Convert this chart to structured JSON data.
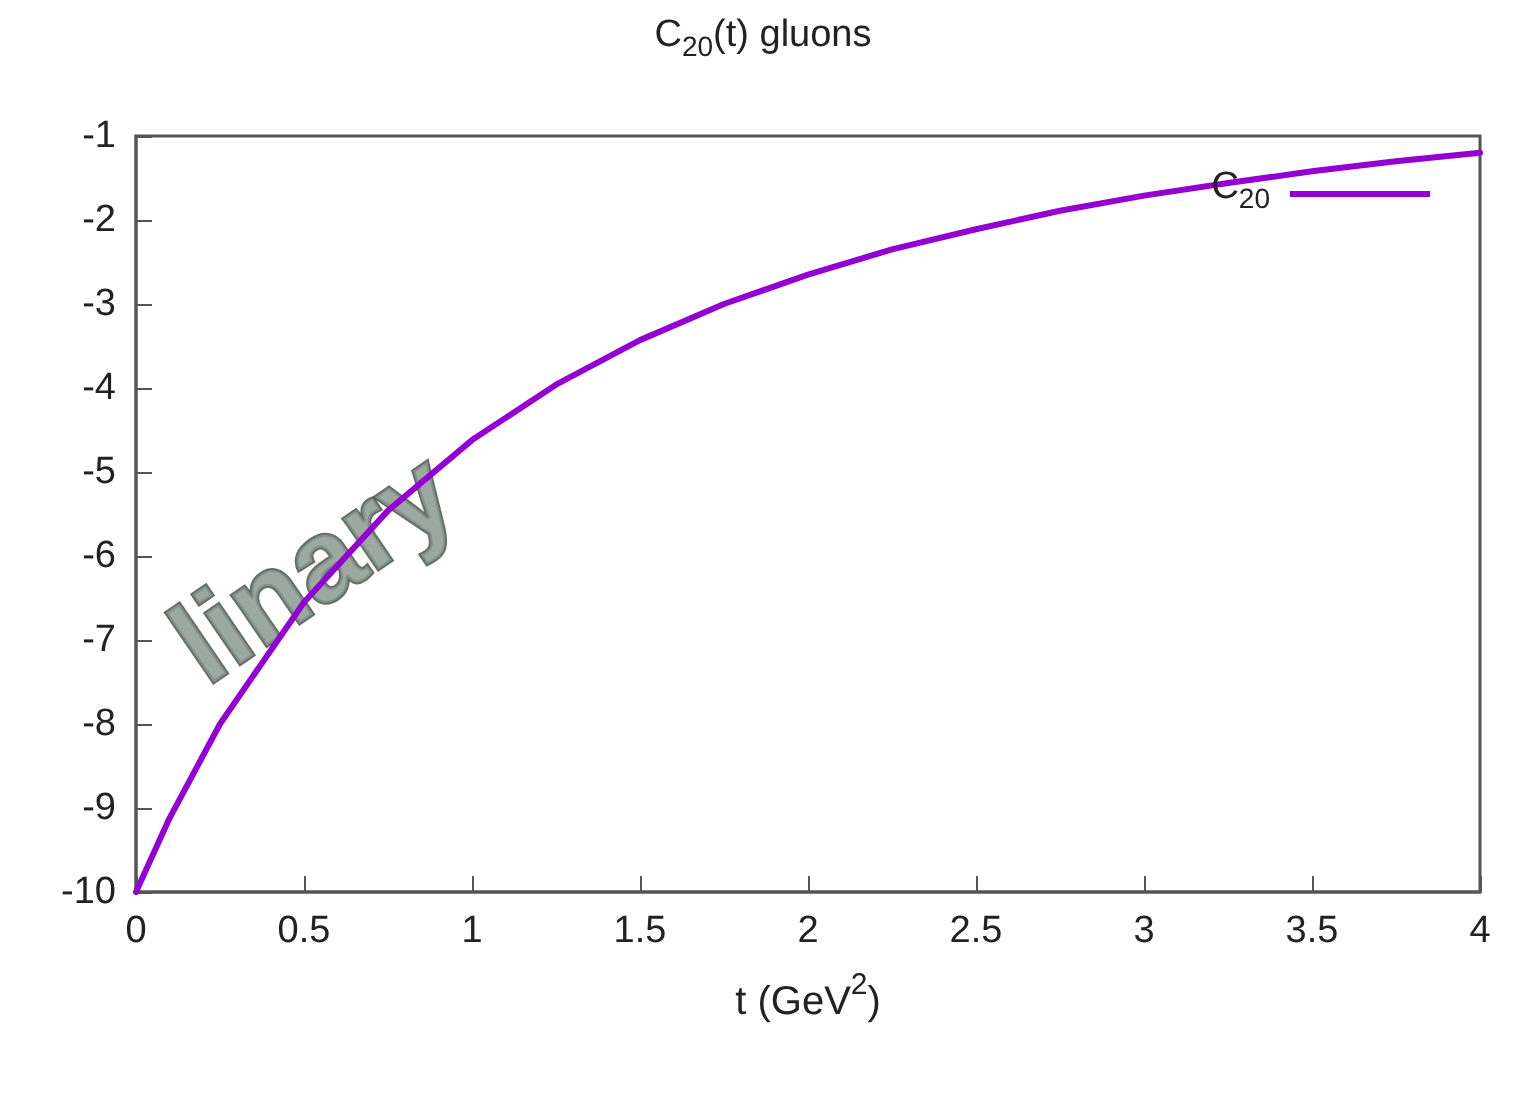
{
  "chart_data": {
    "type": "line",
    "title": "C$_{20}$(t) gluons",
    "xlabel": "t (GeV$^{2}$)",
    "x": [
      0,
      0.1,
      0.25,
      0.5,
      0.75,
      1,
      1.25,
      1.5,
      1.75,
      2,
      2.25,
      2.5,
      2.75,
      3,
      3.25,
      3.5,
      3.75,
      4
    ],
    "series": [
      {
        "name": "C$_{20}$",
        "color": "#9400d3",
        "values": [
          -10,
          -9.12,
          -8.0,
          -6.55,
          -5.46,
          -4.62,
          -3.96,
          -3.43,
          -3.0,
          -2.65,
          -2.35,
          -2.11,
          -1.89,
          -1.71,
          -1.56,
          -1.42,
          -1.3,
          -1.2
        ]
      }
    ],
    "xlim": [
      0,
      4
    ],
    "xticks": [
      0,
      0.5,
      1,
      1.5,
      2,
      2.5,
      3,
      3.5,
      4
    ],
    "ylim": [
      -10,
      -1
    ],
    "yticks": [
      -10,
      -9,
      -8,
      -7,
      -6,
      -5,
      -4,
      -3,
      -2,
      -1
    ],
    "grid": false,
    "legend": "top right",
    "marker": "none",
    "line_style": "solid",
    "annotations": [
      "linary"
    ]
  }
}
